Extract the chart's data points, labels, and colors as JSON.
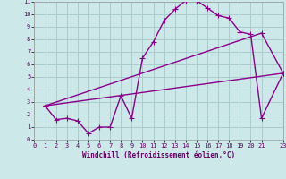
{
  "title": "",
  "xlabel": "Windchill (Refroidissement éolien,°C)",
  "ylabel": "",
  "background_color": "#cce8e8",
  "line_color": "#8b008b",
  "grid_color": "#aacccc",
  "xlim": [
    0,
    23
  ],
  "ylim": [
    0,
    11
  ],
  "xticks": [
    0,
    1,
    2,
    3,
    4,
    5,
    6,
    7,
    8,
    9,
    10,
    11,
    12,
    13,
    14,
    15,
    16,
    17,
    18,
    19,
    20,
    21,
    23
  ],
  "yticks": [
    0,
    1,
    2,
    3,
    4,
    5,
    6,
    7,
    8,
    9,
    10,
    11
  ],
  "curve1_x": [
    1,
    2,
    3,
    4,
    5,
    6,
    7,
    8,
    9,
    10,
    11,
    12,
    13,
    14,
    15,
    16,
    17,
    18,
    19,
    20,
    21,
    23
  ],
  "curve1_y": [
    2.7,
    1.6,
    1.7,
    1.5,
    0.5,
    1.0,
    1.0,
    3.5,
    1.7,
    6.5,
    7.8,
    9.5,
    10.4,
    11.1,
    11.1,
    10.5,
    9.9,
    9.7,
    8.6,
    8.4,
    1.7,
    5.3
  ],
  "curve2_x": [
    1,
    23
  ],
  "curve2_y": [
    2.7,
    5.3
  ],
  "curve3_x": [
    1,
    21,
    23
  ],
  "curve3_y": [
    2.7,
    8.5,
    5.3
  ],
  "marker": "+",
  "markersize": 4,
  "linewidth": 1.0
}
